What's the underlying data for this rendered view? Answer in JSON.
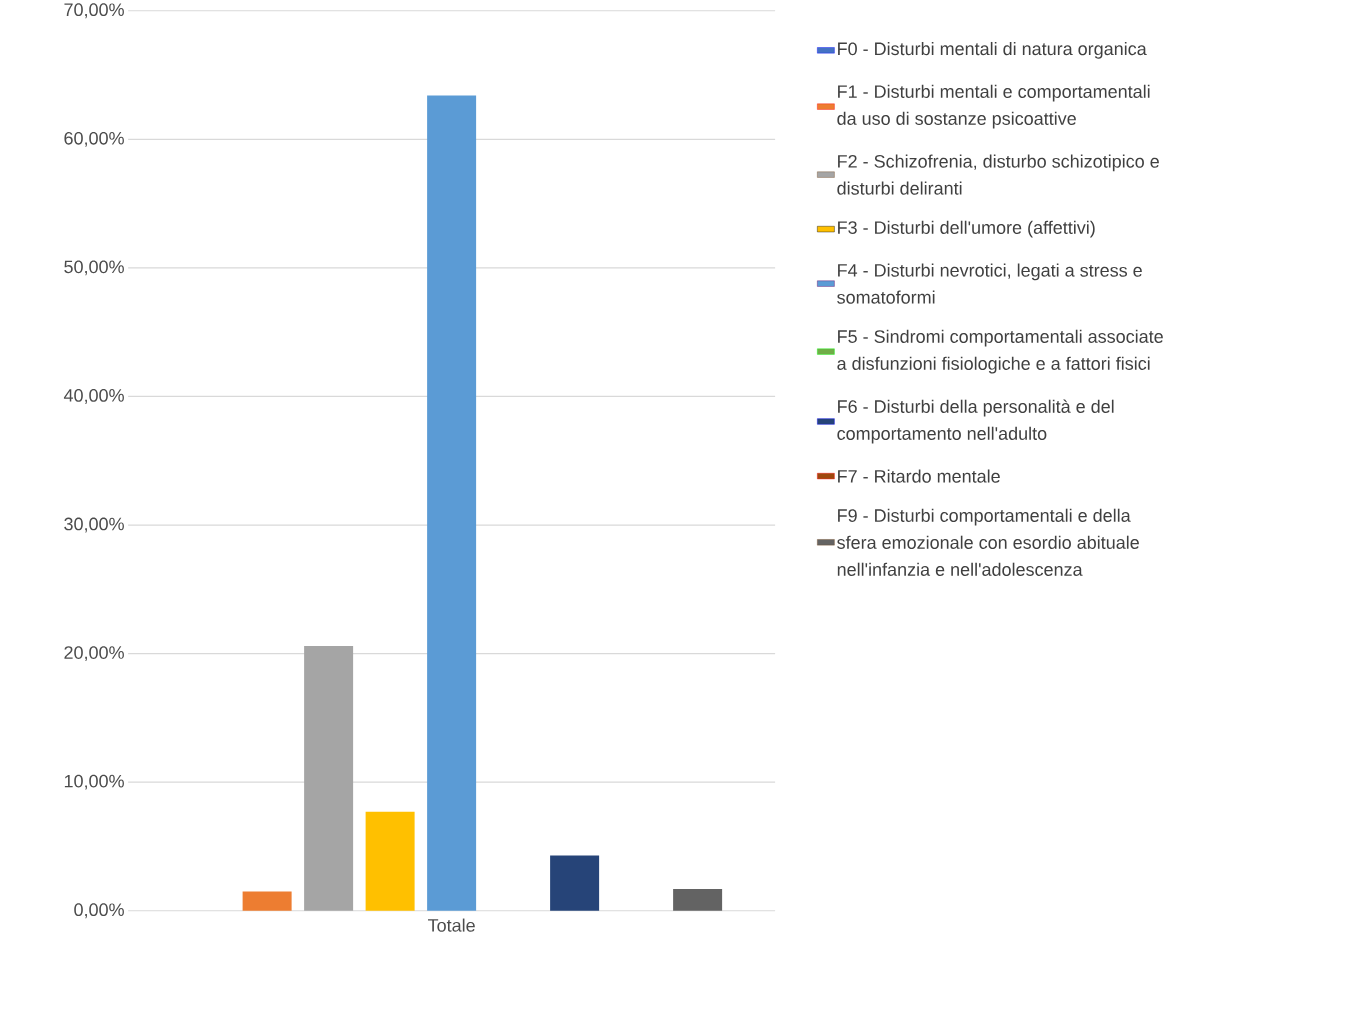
{
  "chart_data": {
    "type": "bar",
    "categories": [
      "Totale"
    ],
    "series": [
      {
        "name": "F0 - Disturbi mentali di natura organica",
        "color": "#4472c4",
        "values": [
          0
        ]
      },
      {
        "name": "F1 - Disturbi mentali e comportamentali da uso di sostanze psicoattive",
        "color": "#ed7d31",
        "values": [
          1.5
        ]
      },
      {
        "name": "F2 - Schizofrenia, disturbo schizotipico e disturbi deliranti",
        "color": "#a5a5a5",
        "values": [
          20.6
        ]
      },
      {
        "name": "F3 - Disturbi dell'umore (affettivi)",
        "color": "#ffc000",
        "values": [
          7.7
        ]
      },
      {
        "name": "F4 - Disturbi nevrotici, legati a stress e somatoformi",
        "color": "#5b9bd5",
        "values": [
          63.4
        ]
      },
      {
        "name": "F5 - Sindromi comportamentali associate a disfunzioni fisiologiche e a fattori fisici",
        "color": "#70ad47",
        "values": [
          0
        ]
      },
      {
        "name": "F6 - Disturbi della personalità e del comportamento nell'adulto",
        "color": "#264478",
        "values": [
          4.3
        ]
      },
      {
        "name": "F7 - Ritardo mentale",
        "color": "#9e480e",
        "values": [
          0
        ]
      },
      {
        "name": "F9 - Disturbi comportamentali e della sfera emozionale con esordio abituale nell'infanzia e nell'adolescenza",
        "color": "#636363",
        "values": [
          1.7
        ]
      }
    ],
    "ylim": [
      0,
      70
    ],
    "yticks": [
      {
        "value": 0,
        "label": "0,00%"
      },
      {
        "value": 10,
        "label": "10,00%"
      },
      {
        "value": 20,
        "label": "20,00%"
      },
      {
        "value": 30,
        "label": "30,00%"
      },
      {
        "value": 40,
        "label": "40,00%"
      },
      {
        "value": 50,
        "label": "50,00%"
      },
      {
        "value": 60,
        "label": "60,00%"
      },
      {
        "value": 70,
        "label": "70,00%"
      }
    ],
    "grid": "y",
    "legend": "right"
  }
}
